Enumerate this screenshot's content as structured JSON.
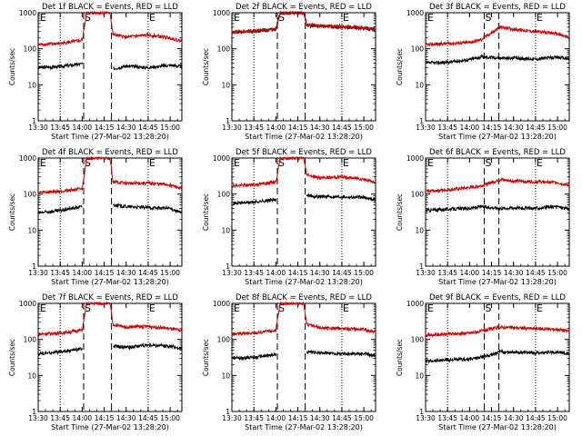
{
  "figure": {
    "xlabel": "Start Time (27-Mar-02 13:28:20)",
    "ylabel": "Counts/sec",
    "x_tick_labels": [
      "13:30",
      "13:45",
      "14:00",
      "14:15",
      "14:30",
      "14:45",
      "15:00"
    ],
    "y_tick_labels": [
      "1",
      "10",
      "100",
      "1000"
    ],
    "marker_labels": [
      "E",
      "S",
      "E"
    ],
    "colors": {
      "events": "#000000",
      "lld": "#d00000",
      "markers": "#000000"
    }
  },
  "chart_data": [
    {
      "type": "line",
      "title": "Det 1f  BLACK = Events, RED = LLD",
      "xlabel": "Start Time (27-Mar-02 13:28:20)",
      "ylabel": "Counts/sec",
      "xlim": [
        "13:30",
        "15:08"
      ],
      "ylim": [
        1,
        1000
      ],
      "y_scale": "log",
      "dotted_lines": [
        "13:45",
        "14:45"
      ],
      "dashed_lines": [
        "14:01",
        "14:20"
      ],
      "series": [
        {
          "name": "BLACK = Events",
          "x": [
            "13:30",
            "13:45",
            "14:00",
            "14:03",
            "14:19",
            "14:21",
            "14:30",
            "14:45",
            "15:00",
            "15:08"
          ],
          "values": [
            30,
            32,
            38,
            "gap",
            "gap",
            28,
            33,
            30,
            35,
            32
          ]
        },
        {
          "name": "RED = LLD",
          "x": [
            "13:30",
            "13:45",
            "14:00",
            "14:03",
            "14:19",
            "14:21",
            "14:30",
            "14:45",
            "15:00",
            "15:08"
          ],
          "values": [
            130,
            140,
            170,
            1000,
            1000,
            250,
            210,
            240,
            200,
            160
          ]
        }
      ]
    },
    {
      "type": "line",
      "title": "Det 2f  BLACK = Events, RED = LLD",
      "xlabel": "Start Time (27-Mar-02 13:28:20)",
      "ylabel": "Counts/sec",
      "xlim": [
        "13:30",
        "15:08"
      ],
      "ylim": [
        1,
        1000
      ],
      "y_scale": "log",
      "dotted_lines": [
        "13:45",
        "14:45"
      ],
      "dashed_lines": [
        "14:01",
        "14:20"
      ],
      "series": [
        {
          "name": "BLACK = Events",
          "x": [
            "13:30",
            "13:45",
            "14:00",
            "14:03",
            "14:19",
            "14:21",
            "14:30",
            "14:45",
            "15:00",
            "15:08"
          ],
          "values": [
            290,
            300,
            350,
            1000,
            1000,
            450,
            420,
            400,
            370,
            330
          ]
        },
        {
          "name": "RED = LLD",
          "x": [
            "13:30",
            "13:45",
            "14:00",
            "14:03",
            "14:19",
            "14:21",
            "14:30",
            "14:45",
            "15:00",
            "15:08"
          ],
          "values": [
            300,
            310,
            360,
            1000,
            1000,
            480,
            430,
            420,
            380,
            350
          ]
        }
      ]
    },
    {
      "type": "line",
      "title": "Det 3f  BLACK = Events, RED = LLD",
      "xlabel": "Start Time (27-Mar-02 13:28:20)",
      "ylabel": "Counts/sec",
      "xlim": [
        "13:30",
        "15:08"
      ],
      "ylim": [
        1,
        1000
      ],
      "y_scale": "log",
      "dotted_lines": [
        "13:45",
        "14:45"
      ],
      "dashed_lines": [
        "14:10",
        "14:20"
      ],
      "series": [
        {
          "name": "BLACK = Events",
          "x": [
            "13:30",
            "13:45",
            "14:00",
            "14:08",
            "14:21",
            "14:30",
            "14:45",
            "15:00",
            "15:08"
          ],
          "values": [
            40,
            42,
            50,
            60,
            55,
            55,
            52,
            58,
            52
          ]
        },
        {
          "name": "RED = LLD",
          "x": [
            "13:30",
            "13:45",
            "14:00",
            "14:08",
            "14:21",
            "14:30",
            "14:45",
            "15:00",
            "15:08"
          ],
          "values": [
            130,
            140,
            150,
            180,
            400,
            350,
            300,
            260,
            200
          ]
        }
      ]
    },
    {
      "type": "line",
      "title": "Det 4f  BLACK = Events, RED = LLD",
      "xlabel": "Start Time (27-Mar-02 13:28:20)",
      "ylabel": "Counts/sec",
      "xlim": [
        "13:30",
        "15:08"
      ],
      "ylim": [
        1,
        1000
      ],
      "y_scale": "log",
      "dotted_lines": [
        "13:45",
        "14:45"
      ],
      "dashed_lines": [
        "14:01",
        "14:20"
      ],
      "series": [
        {
          "name": "BLACK = Events",
          "x": [
            "13:30",
            "13:45",
            "14:00",
            "14:03",
            "14:19",
            "14:21",
            "14:30",
            "14:45",
            "15:00",
            "15:08"
          ],
          "values": [
            30,
            35,
            45,
            "gap",
            "gap",
            50,
            45,
            42,
            40,
            30
          ]
        },
        {
          "name": "RED = LLD",
          "x": [
            "13:30",
            "13:45",
            "14:00",
            "14:03",
            "14:19",
            "14:21",
            "14:30",
            "14:45",
            "15:00",
            "15:08"
          ],
          "values": [
            110,
            120,
            140,
            1000,
            1000,
            220,
            200,
            200,
            180,
            140
          ]
        }
      ]
    },
    {
      "type": "line",
      "title": "Det 5f  BLACK = Events, RED = LLD",
      "xlabel": "Start Time (27-Mar-02 13:28:20)",
      "ylabel": "Counts/sec",
      "xlim": [
        "13:30",
        "15:08"
      ],
      "ylim": [
        1,
        1000
      ],
      "y_scale": "log",
      "dotted_lines": [
        "13:45",
        "14:45"
      ],
      "dashed_lines": [
        "14:01",
        "14:20"
      ],
      "series": [
        {
          "name": "BLACK = Events",
          "x": [
            "13:30",
            "13:45",
            "14:00",
            "14:03",
            "14:19",
            "14:21",
            "14:30",
            "14:45",
            "15:00",
            "15:08"
          ],
          "values": [
            55,
            60,
            70,
            "gap",
            "gap",
            90,
            85,
            85,
            80,
            70
          ]
        },
        {
          "name": "RED = LLD",
          "x": [
            "13:30",
            "13:45",
            "14:00",
            "14:03",
            "14:19",
            "14:21",
            "14:30",
            "14:45",
            "15:00",
            "15:08"
          ],
          "values": [
            170,
            180,
            220,
            1000,
            1000,
            350,
            280,
            300,
            260,
            210
          ]
        }
      ]
    },
    {
      "type": "line",
      "title": "Det 6f  BLACK = Events, RED = LLD",
      "xlabel": "Start Time (27-Mar-02 13:28:20)",
      "ylabel": "Counts/sec",
      "xlim": [
        "13:30",
        "15:08"
      ],
      "ylim": [
        1,
        1000
      ],
      "y_scale": "log",
      "dotted_lines": [
        "13:45",
        "14:45"
      ],
      "dashed_lines": [
        "14:10",
        "14:20"
      ],
      "series": [
        {
          "name": "BLACK = Events",
          "x": [
            "13:30",
            "13:45",
            "14:00",
            "14:08",
            "14:21",
            "14:30",
            "14:45",
            "15:00",
            "15:08"
          ],
          "values": [
            35,
            38,
            40,
            45,
            40,
            42,
            40,
            45,
            38
          ]
        },
        {
          "name": "RED = LLD",
          "x": [
            "13:30",
            "13:45",
            "14:00",
            "14:08",
            "14:21",
            "14:30",
            "14:45",
            "15:00",
            "15:08"
          ],
          "values": [
            120,
            130,
            150,
            170,
            250,
            230,
            220,
            210,
            170
          ]
        }
      ]
    },
    {
      "type": "line",
      "title": "Det 7f  BLACK = Events, RED = LLD",
      "xlabel": "Start Time (27-Mar-02 13:28:20)",
      "ylabel": "Counts/sec",
      "xlim": [
        "13:30",
        "15:08"
      ],
      "ylim": [
        1,
        1000
      ],
      "y_scale": "log",
      "dotted_lines": [
        "13:45",
        "14:45"
      ],
      "dashed_lines": [
        "14:01",
        "14:20"
      ],
      "series": [
        {
          "name": "BLACK = Events",
          "x": [
            "13:30",
            "13:45",
            "14:00",
            "14:03",
            "14:19",
            "14:21",
            "14:30",
            "14:45",
            "15:00",
            "15:08"
          ],
          "values": [
            40,
            45,
            55,
            "gap",
            "gap",
            65,
            60,
            70,
            65,
            55
          ]
        },
        {
          "name": "RED = LLD",
          "x": [
            "13:30",
            "13:45",
            "14:00",
            "14:03",
            "14:19",
            "14:21",
            "14:30",
            "14:45",
            "15:00",
            "15:08"
          ],
          "values": [
            140,
            150,
            180,
            1000,
            1000,
            260,
            220,
            230,
            200,
            170
          ]
        }
      ]
    },
    {
      "type": "line",
      "title": "Det 8f  BLACK = Events, RED = LLD",
      "xlabel": "Start Time (27-Mar-02 13:28:20)",
      "ylabel": "Counts/sec",
      "xlim": [
        "13:30",
        "15:08"
      ],
      "ylim": [
        1,
        1000
      ],
      "y_scale": "log",
      "dotted_lines": [
        "13:45",
        "14:45"
      ],
      "dashed_lines": [
        "14:01",
        "14:20"
      ],
      "series": [
        {
          "name": "BLACK = Events",
          "x": [
            "13:30",
            "13:45",
            "14:00",
            "14:03",
            "14:19",
            "14:21",
            "14:30",
            "14:45",
            "15:00",
            "15:08"
          ],
          "values": [
            30,
            32,
            38,
            "gap",
            "gap",
            45,
            42,
            40,
            40,
            35
          ]
        },
        {
          "name": "RED = LLD",
          "x": [
            "13:30",
            "13:45",
            "14:00",
            "14:03",
            "14:19",
            "14:21",
            "14:30",
            "14:45",
            "15:00",
            "15:08"
          ],
          "values": [
            140,
            150,
            180,
            1000,
            1000,
            260,
            210,
            200,
            190,
            160
          ]
        }
      ]
    },
    {
      "type": "line",
      "title": "Det 9f  BLACK = Events, RED = LLD",
      "xlabel": "Start Time (27-Mar-02 13:28:20)",
      "ylabel": "Counts/sec",
      "xlim": [
        "13:30",
        "15:08"
      ],
      "ylim": [
        1,
        1000
      ],
      "y_scale": "log",
      "dotted_lines": [
        "13:45",
        "14:45"
      ],
      "dashed_lines": [
        "14:10",
        "14:20"
      ],
      "series": [
        {
          "name": "BLACK = Events",
          "x": [
            "13:30",
            "13:45",
            "14:00",
            "14:08",
            "14:21",
            "14:30",
            "14:45",
            "15:00",
            "15:08"
          ],
          "values": [
            25,
            27,
            28,
            32,
            45,
            45,
            42,
            45,
            40
          ]
        },
        {
          "name": "RED = LLD",
          "x": [
            "13:30",
            "13:45",
            "14:00",
            "14:08",
            "14:21",
            "14:30",
            "14:45",
            "15:00",
            "15:08"
          ],
          "values": [
            130,
            140,
            150,
            170,
            220,
            210,
            200,
            190,
            170
          ]
        }
      ]
    }
  ]
}
